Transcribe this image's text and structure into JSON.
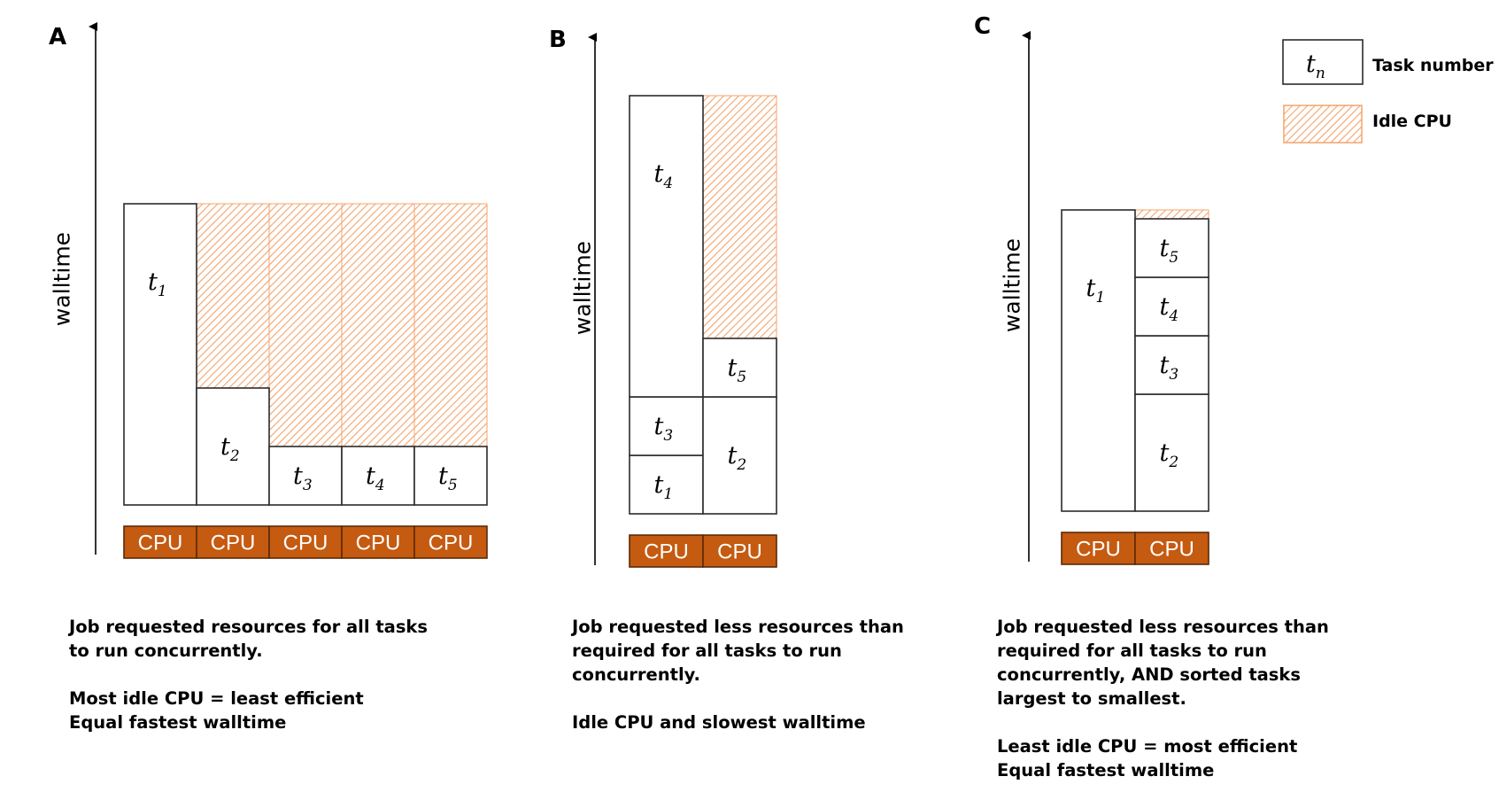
{
  "colors": {
    "cpu_fill": "#c55a11",
    "cpu_stroke": "#5a2a08",
    "idle_hatch": "#f4a36b",
    "task_stroke": "#2b2b2b"
  },
  "axis": {
    "label": "walltime"
  },
  "cpu_label": "CPU",
  "legend": {
    "task_symbol": "t",
    "task_symbol_sub": "n",
    "task_label": "Task number",
    "idle_label": "Idle CPU"
  },
  "panels": [
    {
      "letter": "A",
      "cpu_count": 5,
      "tasks": [
        {
          "label": "t",
          "sub": "1",
          "duration": 340
        },
        {
          "label": "t",
          "sub": "2",
          "duration": 132
        },
        {
          "label": "t",
          "sub": "3",
          "duration": 66
        },
        {
          "label": "t",
          "sub": "4",
          "duration": 66
        },
        {
          "label": "t",
          "sub": "5",
          "duration": 66
        }
      ],
      "caption": [
        "Job requested resources for all tasks",
        "to run concurrently.",
        "",
        "Most idle CPU = least efficient",
        "Equal fastest walltime"
      ]
    },
    {
      "letter": "B",
      "cpu_count": 2,
      "tasks": [
        {
          "label": "t",
          "sub": "1",
          "duration": 66
        },
        {
          "label": "t",
          "sub": "3",
          "duration": 66
        },
        {
          "label": "t",
          "sub": "4",
          "duration": 340
        },
        {
          "label": "t",
          "sub": "2",
          "duration": 132
        },
        {
          "label": "t",
          "sub": "5",
          "duration": 66
        }
      ],
      "caption": [
        "Job requested less resources than",
        "required for all tasks to run",
        "concurrently.",
        "",
        "Idle CPU and slowest walltime"
      ]
    },
    {
      "letter": "C",
      "cpu_count": 2,
      "tasks": [
        {
          "label": "t",
          "sub": "1",
          "duration": 340
        },
        {
          "label": "t",
          "sub": "2",
          "duration": 132
        },
        {
          "label": "t",
          "sub": "3",
          "duration": 66
        },
        {
          "label": "t",
          "sub": "4",
          "duration": 66
        },
        {
          "label": "t",
          "sub": "5",
          "duration": 66
        }
      ],
      "caption": [
        "Job requested less resources than",
        "required for all tasks to run",
        "concurrently, AND sorted tasks",
        "largest to smallest.",
        "",
        "Least idle CPU = most efficient",
        "Equal fastest walltime"
      ]
    }
  ]
}
